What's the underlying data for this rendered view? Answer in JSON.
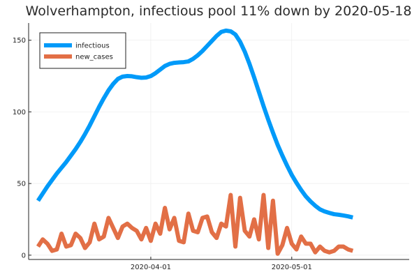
{
  "chart_data": {
    "type": "line",
    "title": "Wolverhampton, infectious pool 11% down by 2020-05-18",
    "xlabel": "",
    "ylabel": "",
    "x_start": "2020-03-08",
    "x_end": "2020-05-24",
    "xlim": [
      "2020-03-06",
      "2020-05-26"
    ],
    "ylim": [
      -3,
      162
    ],
    "x_ticks": [
      {
        "date": "2020-04-01",
        "label": "2020-04-01"
      },
      {
        "date": "2020-05-01",
        "label": "2020-05-01"
      }
    ],
    "y_ticks": [
      0,
      50,
      100,
      150
    ],
    "grid": true,
    "legend": "top-left",
    "series": [
      {
        "name": "infectious",
        "color": "#009af9",
        "values": [
          38,
          43,
          48,
          52.5,
          57,
          61,
          65,
          69.5,
          74,
          79,
          84.5,
          90.5,
          97,
          103.5,
          109.5,
          115,
          119.5,
          123,
          124.6,
          125,
          124.8,
          124.2,
          123.8,
          124,
          125,
          127,
          129.5,
          132,
          133.5,
          134.2,
          134.5,
          134.7,
          135.2,
          137,
          139.5,
          142.5,
          146,
          149.5,
          153,
          155.8,
          156.7,
          156.2,
          154,
          149,
          142,
          133.5,
          124,
          114,
          104,
          94.5,
          85.5,
          77,
          69.5,
          62.5,
          56,
          50.5,
          45.5,
          41,
          37.5,
          34.5,
          32,
          30.5,
          29.5,
          28.6,
          28.2,
          27.7,
          27.1,
          26.3
        ]
      },
      {
        "name": "new_cases",
        "color": "#e26f46",
        "values": [
          6,
          11,
          8,
          3,
          4,
          15,
          6,
          7,
          15,
          12,
          5,
          9,
          22,
          11,
          13,
          26,
          19,
          12,
          20,
          22,
          19,
          17,
          11,
          19,
          10,
          22,
          15,
          33,
          18,
          26,
          10,
          9,
          29,
          17,
          16,
          26,
          27,
          16,
          12,
          22,
          20,
          42,
          6,
          40,
          17,
          13,
          25,
          11,
          42,
          5,
          38,
          1,
          7,
          19,
          8,
          4,
          13,
          8,
          8,
          2,
          6,
          3,
          2,
          3,
          6,
          6,
          4,
          3
        ]
      }
    ]
  }
}
